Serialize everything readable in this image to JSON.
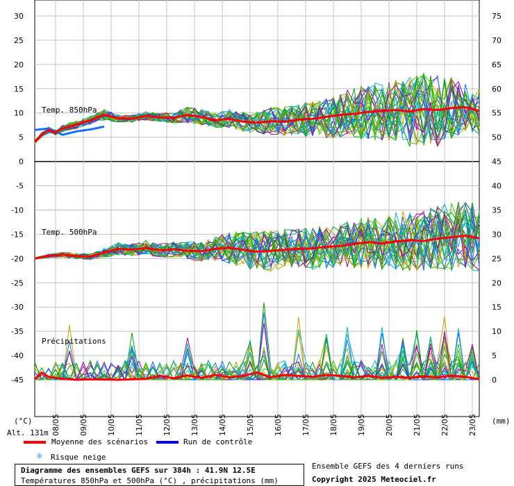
{
  "chart_data": {
    "type": "line",
    "title": "Diagramme des ensembles GEFS sur 384h : 41.9N 12.5E",
    "subtitle": "Températures 850hPa et 500hPa (°C) , précipitations (mm)",
    "left_axis": {
      "unit": "(°C)",
      "ticks": [
        30,
        25,
        20,
        15,
        10,
        5,
        0,
        -5,
        -10,
        -15,
        -20,
        -25,
        -30,
        -35,
        -40,
        -45
      ]
    },
    "right_axis": {
      "unit": "(mm)",
      "ticks": [
        75,
        70,
        65,
        60,
        55,
        50,
        45,
        40,
        35,
        30,
        25,
        20,
        15,
        10,
        5,
        0
      ]
    },
    "x": {
      "tick_labels": [
        "08/05",
        "09/05",
        "10/05",
        "11/05",
        "12/05",
        "13/05",
        "14/05",
        "15/05",
        "16/05",
        "17/05",
        "18/05",
        "19/05",
        "20/05",
        "21/05",
        "22/05",
        "23/05"
      ],
      "range_hours": [
        0,
        384
      ]
    },
    "panels": [
      {
        "label": "Temp. 850hPa",
        "y_range_degC": [
          0,
          30
        ],
        "mean": [
          [
            0,
            4
          ],
          [
            6,
            5.5
          ],
          [
            12,
            6.5
          ],
          [
            18,
            6
          ],
          [
            24,
            6.8
          ],
          [
            36,
            7.6
          ],
          [
            48,
            8.5
          ],
          [
            60,
            9.6
          ],
          [
            72,
            8.9
          ],
          [
            84,
            8.8
          ],
          [
            96,
            9.4
          ],
          [
            108,
            9.1
          ],
          [
            120,
            9.0
          ],
          [
            132,
            9.6
          ],
          [
            144,
            9.2
          ],
          [
            156,
            8.5
          ],
          [
            168,
            8.8
          ],
          [
            180,
            8.2
          ],
          [
            192,
            8.0
          ],
          [
            204,
            8.3
          ],
          [
            216,
            8.2
          ],
          [
            228,
            8.6
          ],
          [
            240,
            8.8
          ],
          [
            252,
            9.2
          ],
          [
            264,
            9.6
          ],
          [
            276,
            9.8
          ],
          [
            288,
            10.2
          ],
          [
            300,
            10.4
          ],
          [
            312,
            10.6
          ],
          [
            324,
            10.3
          ],
          [
            336,
            10.8
          ],
          [
            348,
            10.6
          ],
          [
            360,
            11.0
          ],
          [
            372,
            11.2
          ],
          [
            384,
            10.4
          ]
        ],
        "control": [
          [
            0,
            6.5
          ],
          [
            12,
            6.8
          ],
          [
            24,
            5.5
          ],
          [
            36,
            6.2
          ],
          [
            48,
            6.6
          ],
          [
            60,
            7.2
          ]
        ],
        "members_min": [
          [
            0,
            3
          ],
          [
            24,
            4
          ],
          [
            48,
            6
          ],
          [
            72,
            7
          ],
          [
            96,
            7.5
          ],
          [
            120,
            7
          ],
          [
            144,
            6.5
          ],
          [
            168,
            6
          ],
          [
            192,
            5
          ],
          [
            216,
            4
          ],
          [
            240,
            4.5
          ],
          [
            264,
            5
          ],
          [
            288,
            5
          ],
          [
            312,
            4.5
          ],
          [
            336,
            4.5
          ],
          [
            360,
            5
          ],
          [
            384,
            4
          ]
        ],
        "members_max": [
          [
            0,
            6
          ],
          [
            24,
            7.5
          ],
          [
            48,
            9
          ],
          [
            72,
            10.5
          ],
          [
            96,
            10.5
          ],
          [
            120,
            10.5
          ],
          [
            144,
            10.5
          ],
          [
            168,
            11
          ],
          [
            192,
            11
          ],
          [
            216,
            12
          ],
          [
            240,
            14
          ],
          [
            264,
            16
          ],
          [
            288,
            18
          ],
          [
            312,
            19
          ],
          [
            336,
            21
          ],
          [
            360,
            20
          ],
          [
            384,
            15
          ]
        ]
      },
      {
        "label": "Temp. 500hPa",
        "y_range_degC": [
          -45,
          0
        ],
        "mean": [
          [
            0,
            -20
          ],
          [
            12,
            -19.5
          ],
          [
            24,
            -19.2
          ],
          [
            36,
            -19.5
          ],
          [
            48,
            -19.6
          ],
          [
            60,
            -18.8
          ],
          [
            72,
            -18
          ],
          [
            84,
            -18.2
          ],
          [
            96,
            -17.8
          ],
          [
            108,
            -18.3
          ],
          [
            120,
            -18.1
          ],
          [
            132,
            -18.4
          ],
          [
            144,
            -18.5
          ],
          [
            156,
            -18.0
          ],
          [
            168,
            -17.8
          ],
          [
            180,
            -18.2
          ],
          [
            192,
            -18.6
          ],
          [
            204,
            -18.4
          ],
          [
            216,
            -18.2
          ],
          [
            228,
            -18.0
          ],
          [
            240,
            -17.9
          ],
          [
            252,
            -17.6
          ],
          [
            264,
            -17.4
          ],
          [
            276,
            -17.0
          ],
          [
            288,
            -16.6
          ],
          [
            300,
            -16.9
          ],
          [
            312,
            -16.5
          ],
          [
            324,
            -16.2
          ],
          [
            336,
            -16.4
          ],
          [
            348,
            -15.9
          ],
          [
            360,
            -15.6
          ],
          [
            372,
            -15.3
          ],
          [
            384,
            -15.8
          ]
        ],
        "members_min": [
          [
            0,
            -21
          ],
          [
            48,
            -21.5
          ],
          [
            96,
            -21
          ],
          [
            144,
            -21
          ],
          [
            192,
            -24
          ],
          [
            240,
            -23
          ],
          [
            288,
            -24
          ],
          [
            336,
            -25
          ],
          [
            384,
            -25
          ]
        ],
        "members_max": [
          [
            0,
            -19
          ],
          [
            48,
            -18
          ],
          [
            96,
            -16
          ],
          [
            144,
            -15
          ],
          [
            192,
            -13
          ],
          [
            240,
            -12
          ],
          [
            288,
            -11
          ],
          [
            336,
            -9
          ],
          [
            384,
            -9
          ]
        ]
      },
      {
        "label": "Précipitations",
        "y_range_mm": [
          0,
          15
        ],
        "mean": [
          [
            0,
            0.1
          ],
          [
            6,
            1.5
          ],
          [
            12,
            0.6
          ],
          [
            24,
            0.2
          ],
          [
            36,
            0.0
          ],
          [
            48,
            0.1
          ],
          [
            72,
            0.0
          ],
          [
            96,
            0.2
          ],
          [
            108,
            0.8
          ],
          [
            120,
            0.3
          ],
          [
            132,
            0.9
          ],
          [
            144,
            0.4
          ],
          [
            156,
            1.0
          ],
          [
            168,
            0.5
          ],
          [
            180,
            0.8
          ],
          [
            192,
            1.5
          ],
          [
            204,
            0.5
          ],
          [
            216,
            1.0
          ],
          [
            228,
            0.8
          ],
          [
            240,
            0.6
          ],
          [
            252,
            1.0
          ],
          [
            264,
            0.8
          ],
          [
            276,
            0.5
          ],
          [
            288,
            0.8
          ],
          [
            300,
            0.4
          ],
          [
            312,
            0.6
          ],
          [
            324,
            0.4
          ],
          [
            336,
            0.7
          ],
          [
            348,
            0.5
          ],
          [
            360,
            0.8
          ],
          [
            372,
            0.6
          ],
          [
            384,
            0.1
          ]
        ],
        "peaks": [
          [
            30,
            12
          ],
          [
            84,
            12
          ],
          [
            132,
            9
          ],
          [
            186,
            10
          ],
          [
            198,
            16
          ],
          [
            228,
            14
          ],
          [
            252,
            13
          ],
          [
            270,
            11
          ],
          [
            300,
            12
          ],
          [
            318,
            10
          ],
          [
            330,
            12
          ],
          [
            342,
            9
          ],
          [
            354,
            15
          ],
          [
            366,
            11
          ],
          [
            378,
            8
          ]
        ]
      }
    ],
    "legend": [
      {
        "label": "Moyenne des scénarios",
        "color": "#ff0000"
      },
      {
        "label": "Run de contrôle",
        "color": "#0000ff"
      },
      {
        "label": "Risque neige",
        "color": "#5aa0dc"
      }
    ],
    "member_colors": [
      "#00a000",
      "#00b8b8",
      "#c8a000",
      "#a000a0",
      "#1070ff",
      "#40c000"
    ],
    "grid": true
  },
  "altitude_label": "Alt. 131m",
  "credit_line1": "Ensemble GEFS des 4 derniers runs",
  "credit_line2": "Copyright 2025 Meteociel.fr"
}
